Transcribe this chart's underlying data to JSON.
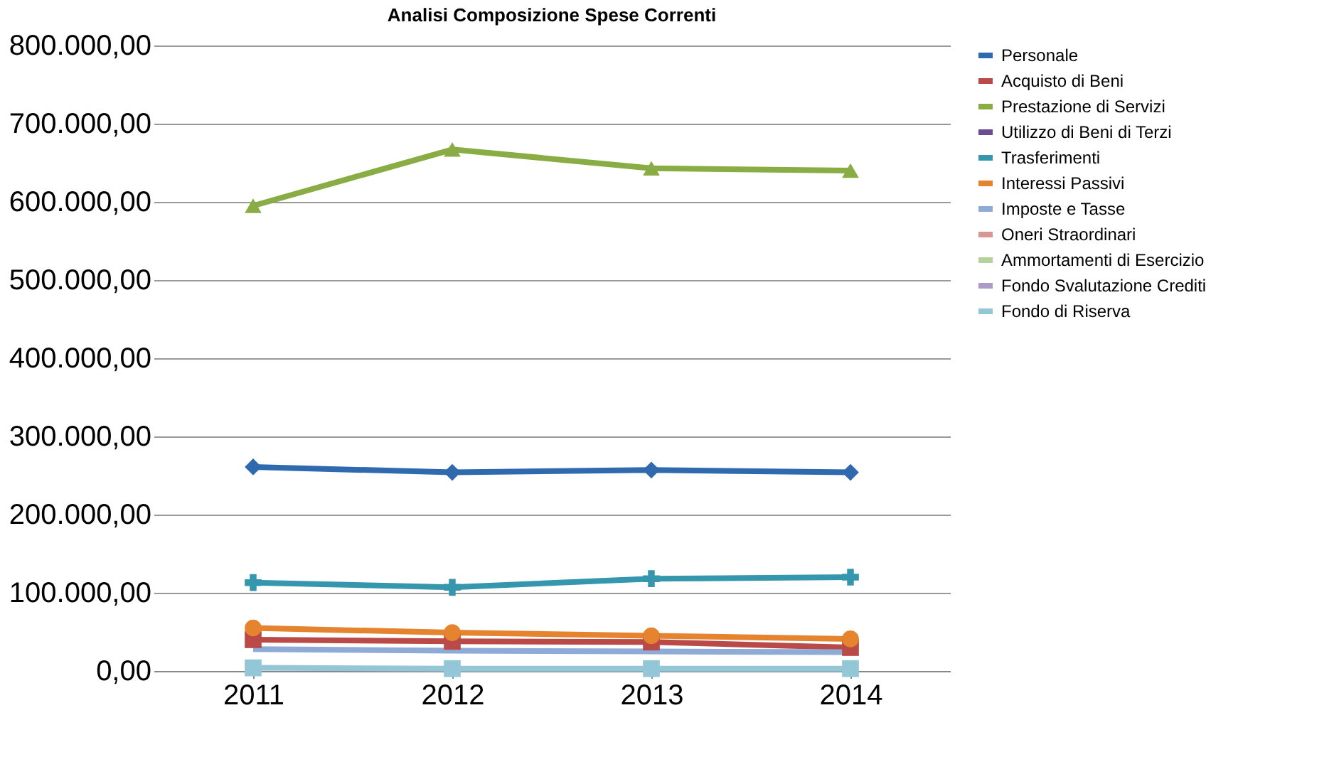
{
  "chart_data": {
    "type": "line",
    "title": "Analisi Composizione Spese Correnti",
    "categories": [
      "2011",
      "2012",
      "2013",
      "2014"
    ],
    "series": [
      {
        "name": "Personale",
        "color": "#2e6aad",
        "marker": "diamond",
        "values": [
          261000,
          254000,
          257000,
          254000
        ]
      },
      {
        "name": "Acquisto di Beni",
        "color": "#b94a48",
        "marker": "square",
        "values": [
          40000,
          38000,
          37000,
          30000
        ]
      },
      {
        "name": "Prestazione di Servizi",
        "color": "#8aac45",
        "marker": "triangle",
        "values": [
          595000,
          667000,
          643000,
          640000
        ]
      },
      {
        "name": "Utilizzo di Beni di Terzi",
        "color": "#6a4c93",
        "marker": "cross",
        "values": [
          null,
          null,
          null,
          null
        ]
      },
      {
        "name": "Trasferimenti",
        "color": "#3597ad",
        "marker": "cross",
        "values": [
          113000,
          107000,
          118000,
          120000
        ]
      },
      {
        "name": "Interessi Passivi",
        "color": "#e5832e",
        "marker": "circle",
        "values": [
          55000,
          49000,
          45000,
          41000
        ]
      },
      {
        "name": "Imposte e Tasse",
        "color": "#8eaad6",
        "marker": "none",
        "values": [
          28000,
          26000,
          25000,
          24000
        ]
      },
      {
        "name": "Oneri Straordinari",
        "color": "#d99594",
        "marker": "none",
        "values": [
          null,
          null,
          null,
          null
        ]
      },
      {
        "name": "Ammortamenti di Esercizio",
        "color": "#b7d19a",
        "marker": "none",
        "values": [
          null,
          null,
          null,
          null
        ]
      },
      {
        "name": "Fondo Svalutazione Crediti",
        "color": "#a99ac6",
        "marker": "diamond",
        "values": [
          null,
          null,
          null,
          null
        ]
      },
      {
        "name": "Fondo di Riserva",
        "color": "#93c6d6",
        "marker": "square",
        "values": [
          4000,
          3000,
          3000,
          3000
        ]
      }
    ],
    "ylim": [
      0,
      800000
    ],
    "yticks": [
      {
        "value": 0,
        "label": "0,00"
      },
      {
        "value": 100000,
        "label": "100.000,00"
      },
      {
        "value": 200000,
        "label": "200.000,00"
      },
      {
        "value": 300000,
        "label": "300.000,00"
      },
      {
        "value": 400000,
        "label": "400.000,00"
      },
      {
        "value": 500000,
        "label": "500.000,00"
      },
      {
        "value": 600000,
        "label": "600.000,00"
      },
      {
        "value": 700000,
        "label": "700.000,00"
      },
      {
        "value": 800000,
        "label": "800.000,00"
      }
    ],
    "grid": "y",
    "legend": "right"
  }
}
